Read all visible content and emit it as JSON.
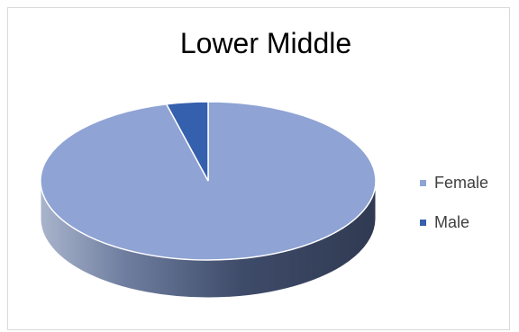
{
  "chart_data": {
    "type": "pie",
    "title": "Lower Middle",
    "categories": [
      "Female",
      "Male"
    ],
    "values": [
      96,
      4
    ],
    "colors": [
      "#8fa3d4",
      "#3560ad"
    ],
    "side_colors": [
      "#4a5a7c",
      "#2a4a86"
    ],
    "legend_position": "right",
    "style": "3d"
  }
}
